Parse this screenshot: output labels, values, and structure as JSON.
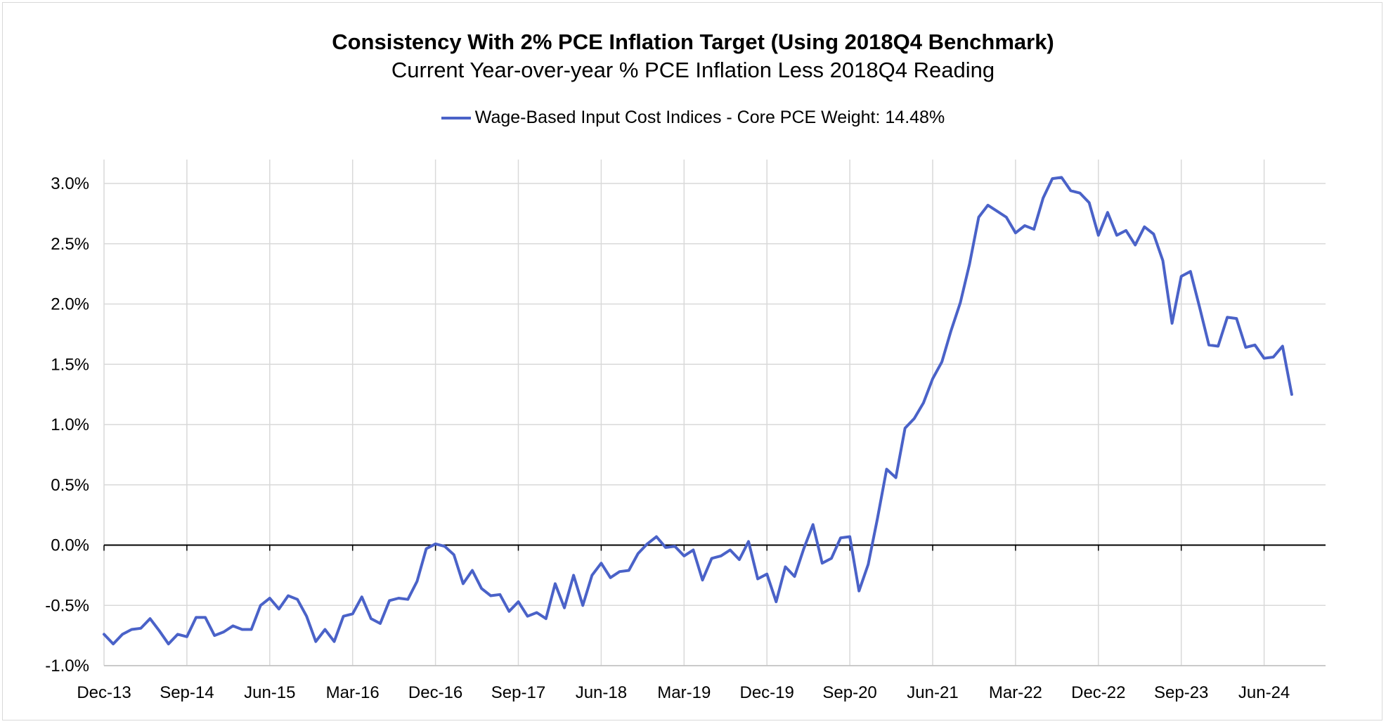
{
  "chart_data": {
    "type": "line",
    "title": "Consistency With 2% PCE Inflation Target (Using 2018Q4 Benchmark)",
    "subtitle": "Current Year-over-year % PCE Inflation Less 2018Q4 Reading",
    "legend_position": "top-center",
    "grid": true,
    "ylim": [
      -1.0,
      3.2
    ],
    "y_ticks": [
      -1.0,
      -0.5,
      0.0,
      0.5,
      1.0,
      1.5,
      2.0,
      2.5,
      3.0
    ],
    "y_tick_labels": [
      "-1.0%",
      "-0.5%",
      "0.0%",
      "0.5%",
      "1.0%",
      "1.5%",
      "2.0%",
      "2.5%",
      "3.0%"
    ],
    "x_tick_labels": [
      "Dec-13",
      "Sep-14",
      "Jun-15",
      "Mar-16",
      "Dec-16",
      "Sep-17",
      "Jun-18",
      "Mar-19",
      "Dec-19",
      "Sep-20",
      "Jun-21",
      "Mar-22",
      "Dec-22",
      "Sep-23",
      "Jun-24"
    ],
    "x_start": "Dec-13",
    "x_interval_months": 1,
    "series": [
      {
        "name": "Wage-Based Input Cost Indices - Core PCE Weight: 14.48%",
        "color": "#4a62c8",
        "values": [
          -0.74,
          -0.82,
          -0.74,
          -0.7,
          -0.69,
          -0.61,
          -0.71,
          -0.82,
          -0.74,
          -0.76,
          -0.6,
          -0.6,
          -0.75,
          -0.72,
          -0.67,
          -0.7,
          -0.7,
          -0.5,
          -0.44,
          -0.53,
          -0.42,
          -0.45,
          -0.59,
          -0.8,
          -0.7,
          -0.8,
          -0.59,
          -0.57,
          -0.43,
          -0.61,
          -0.65,
          -0.46,
          -0.44,
          -0.45,
          -0.3,
          -0.03,
          0.01,
          -0.01,
          -0.08,
          -0.32,
          -0.21,
          -0.36,
          -0.42,
          -0.41,
          -0.55,
          -0.47,
          -0.59,
          -0.56,
          -0.61,
          -0.32,
          -0.52,
          -0.25,
          -0.5,
          -0.25,
          -0.15,
          -0.27,
          -0.22,
          -0.21,
          -0.07,
          0.01,
          0.07,
          -0.02,
          -0.01,
          -0.09,
          -0.04,
          -0.29,
          -0.11,
          -0.09,
          -0.04,
          -0.12,
          0.03,
          -0.28,
          -0.24,
          -0.47,
          -0.18,
          -0.26,
          -0.03,
          0.17,
          -0.15,
          -0.11,
          0.06,
          0.07,
          -0.38,
          -0.16,
          0.22,
          0.63,
          0.56,
          0.97,
          1.05,
          1.18,
          1.38,
          1.52,
          1.78,
          2.01,
          2.33,
          2.72,
          2.82,
          2.77,
          2.72,
          2.59,
          2.65,
          2.62,
          2.88,
          3.04,
          3.05,
          2.94,
          2.92,
          2.84,
          2.57,
          2.76,
          2.57,
          2.61,
          2.49,
          2.64,
          2.58,
          2.36,
          1.84,
          2.23,
          2.27,
          1.97,
          1.66,
          1.65,
          1.89,
          1.88,
          1.64,
          1.66,
          1.55,
          1.56,
          1.65,
          1.25
        ]
      }
    ]
  }
}
